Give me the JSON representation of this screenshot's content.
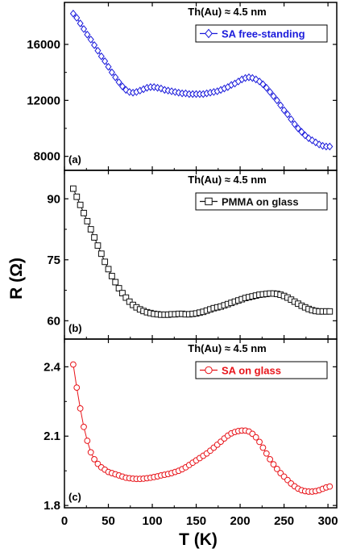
{
  "figure": {
    "ylabel": "R (Ω)",
    "xlabel": "T (K)",
    "x_ticks": [
      0,
      50,
      100,
      150,
      200,
      250,
      300
    ]
  },
  "chart_data": [
    {
      "type": "scatter",
      "panel_label": "(a)",
      "annotation": "Th(Au) ≈ 4.5 nm",
      "legend_placement": "top-right",
      "xlim": [
        0,
        310
      ],
      "ylim": [
        7000,
        19000
      ],
      "y_ticks": [
        8000,
        12000,
        16000
      ],
      "y_tick_labels": [
        "8000",
        "12000",
        "16000"
      ],
      "series": [
        {
          "name": "SA free-standing",
          "color": "#1a1adb",
          "marker": "diamond",
          "points": [
            [
              10,
              18200
            ],
            [
              14,
              17900
            ],
            [
              18,
              17500
            ],
            [
              22,
              17100
            ],
            [
              26,
              16700
            ],
            [
              30,
              16350
            ],
            [
              34,
              15950
            ],
            [
              38,
              15550
            ],
            [
              42,
              15150
            ],
            [
              46,
              14800
            ],
            [
              50,
              14400
            ],
            [
              54,
              14000
            ],
            [
              58,
              13650
            ],
            [
              62,
              13300
            ],
            [
              66,
              13000
            ],
            [
              70,
              12750
            ],
            [
              74,
              12600
            ],
            [
              78,
              12550
            ],
            [
              82,
              12600
            ],
            [
              86,
              12700
            ],
            [
              90,
              12800
            ],
            [
              94,
              12900
            ],
            [
              98,
              12950
            ],
            [
              102,
              12950
            ],
            [
              106,
              12900
            ],
            [
              110,
              12850
            ],
            [
              114,
              12750
            ],
            [
              118,
              12700
            ],
            [
              122,
              12650
            ],
            [
              126,
              12600
            ],
            [
              130,
              12550
            ],
            [
              134,
              12500
            ],
            [
              138,
              12500
            ],
            [
              142,
              12450
            ],
            [
              146,
              12450
            ],
            [
              150,
              12450
            ],
            [
              154,
              12450
            ],
            [
              158,
              12450
            ],
            [
              162,
              12500
            ],
            [
              166,
              12550
            ],
            [
              170,
              12600
            ],
            [
              174,
              12650
            ],
            [
              178,
              12750
            ],
            [
              182,
              12850
            ],
            [
              186,
              12950
            ],
            [
              190,
              13100
            ],
            [
              194,
              13200
            ],
            [
              198,
              13350
            ],
            [
              202,
              13500
            ],
            [
              206,
              13600
            ],
            [
              210,
              13650
            ],
            [
              214,
              13600
            ],
            [
              218,
              13500
            ],
            [
              222,
              13350
            ],
            [
              226,
              13150
            ],
            [
              230,
              12900
            ],
            [
              234,
              12600
            ],
            [
              238,
              12300
            ],
            [
              242,
              12000
            ],
            [
              246,
              11650
            ],
            [
              250,
              11300
            ],
            [
              254,
              11000
            ],
            [
              258,
              10650
            ],
            [
              262,
              10300
            ],
            [
              266,
              10000
            ],
            [
              270,
              9750
            ],
            [
              274,
              9500
            ],
            [
              278,
              9300
            ],
            [
              282,
              9150
            ],
            [
              286,
              9000
            ],
            [
              290,
              8850
            ],
            [
              294,
              8750
            ],
            [
              298,
              8700
            ],
            [
              302,
              8700
            ]
          ]
        }
      ]
    },
    {
      "type": "scatter",
      "panel_label": "(b)",
      "annotation": "Th(Au) ≈ 4.5 nm",
      "legend_placement": "top-right",
      "xlim": [
        0,
        310
      ],
      "ylim": [
        55.5,
        97
      ],
      "y_ticks": [
        60,
        75,
        90
      ],
      "y_tick_labels": [
        "60",
        "75",
        "90"
      ],
      "series": [
        {
          "name": "PMMA on glass",
          "color": "#111111",
          "marker": "square",
          "points": [
            [
              10,
              92.5
            ],
            [
              14,
              90.5
            ],
            [
              18,
              88.5
            ],
            [
              22,
              86.5
            ],
            [
              26,
              84.5
            ],
            [
              30,
              82.5
            ],
            [
              34,
              80.5
            ],
            [
              38,
              78.5
            ],
            [
              42,
              76.5
            ],
            [
              46,
              74.5
            ],
            [
              50,
              72.7
            ],
            [
              54,
              71
            ],
            [
              58,
              69.5
            ],
            [
              62,
              68
            ],
            [
              66,
              66.8
            ],
            [
              70,
              65.7
            ],
            [
              74,
              64.7
            ],
            [
              78,
              63.9
            ],
            [
              82,
              63.3
            ],
            [
              86,
              62.8
            ],
            [
              90,
              62.4
            ],
            [
              94,
              62.1
            ],
            [
              98,
              61.9
            ],
            [
              102,
              61.7
            ],
            [
              106,
              61.6
            ],
            [
              110,
              61.5
            ],
            [
              114,
              61.5
            ],
            [
              118,
              61.5
            ],
            [
              122,
              61.6
            ],
            [
              126,
              61.6
            ],
            [
              130,
              61.7
            ],
            [
              134,
              61.7
            ],
            [
              138,
              61.6
            ],
            [
              142,
              61.6
            ],
            [
              146,
              61.7
            ],
            [
              150,
              61.8
            ],
            [
              154,
              62
            ],
            [
              158,
              62.2
            ],
            [
              162,
              62.5
            ],
            [
              166,
              62.8
            ],
            [
              170,
              63.1
            ],
            [
              174,
              63.3
            ],
            [
              178,
              63.5
            ],
            [
              182,
              63.8
            ],
            [
              186,
              64.1
            ],
            [
              190,
              64.4
            ],
            [
              194,
              64.7
            ],
            [
              198,
              65
            ],
            [
              202,
              65.3
            ],
            [
              206,
              65.6
            ],
            [
              210,
              65.8
            ],
            [
              214,
              66
            ],
            [
              218,
              66.2
            ],
            [
              222,
              66.4
            ],
            [
              226,
              66.5
            ],
            [
              230,
              66.6
            ],
            [
              234,
              66.7
            ],
            [
              238,
              66.7
            ],
            [
              242,
              66.6
            ],
            [
              246,
              66.4
            ],
            [
              250,
              66.1
            ],
            [
              254,
              65.7
            ],
            [
              258,
              65.2
            ],
            [
              262,
              64.7
            ],
            [
              266,
              64.2
            ],
            [
              270,
              63.7
            ],
            [
              274,
              63.3
            ],
            [
              278,
              62.9
            ],
            [
              282,
              62.6
            ],
            [
              286,
              62.4
            ],
            [
              290,
              62.3
            ],
            [
              294,
              62.3
            ],
            [
              298,
              62.3
            ],
            [
              302,
              62.3
            ]
          ]
        }
      ]
    },
    {
      "type": "scatter",
      "panel_label": "(c)",
      "annotation": "Th(Au) ≈ 4.5 nm",
      "legend_placement": "top-right",
      "xlim": [
        0,
        310
      ],
      "ylim": [
        1.79,
        2.52
      ],
      "y_ticks": [
        1.8,
        2.1,
        2.4
      ],
      "y_tick_labels": [
        "1.8",
        "2.1",
        "2.4"
      ],
      "series": [
        {
          "name": "SA on glass",
          "color": "#e8151b",
          "marker": "circle",
          "points": [
            [
              10,
              2.41
            ],
            [
              14,
              2.31
            ],
            [
              18,
              2.22
            ],
            [
              22,
              2.14
            ],
            [
              26,
              2.08
            ],
            [
              30,
              2.03
            ],
            [
              34,
              2.0
            ],
            [
              38,
              1.98
            ],
            [
              42,
              1.965
            ],
            [
              46,
              1.955
            ],
            [
              50,
              1.945
            ],
            [
              54,
              1.94
            ],
            [
              58,
              1.935
            ],
            [
              62,
              1.93
            ],
            [
              66,
              1.925
            ],
            [
              70,
              1.92
            ],
            [
              74,
              1.918
            ],
            [
              78,
              1.916
            ],
            [
              82,
              1.915
            ],
            [
              86,
              1.915
            ],
            [
              90,
              1.916
            ],
            [
              94,
              1.918
            ],
            [
              98,
              1.92
            ],
            [
              102,
              1.923
            ],
            [
              106,
              1.926
            ],
            [
              110,
              1.93
            ],
            [
              114,
              1.933
            ],
            [
              118,
              1.936
            ],
            [
              122,
              1.94
            ],
            [
              126,
              1.945
            ],
            [
              130,
              1.95
            ],
            [
              134,
              1.957
            ],
            [
              138,
              1.965
            ],
            [
              142,
              1.975
            ],
            [
              146,
              1.985
            ],
            [
              150,
              1.995
            ],
            [
              154,
              2.005
            ],
            [
              158,
              2.015
            ],
            [
              162,
              2.025
            ],
            [
              166,
              2.037
            ],
            [
              170,
              2.05
            ],
            [
              174,
              2.063
            ],
            [
              178,
              2.076
            ],
            [
              182,
              2.09
            ],
            [
              186,
              2.102
            ],
            [
              190,
              2.112
            ],
            [
              194,
              2.118
            ],
            [
              198,
              2.122
            ],
            [
              202,
              2.124
            ],
            [
              206,
              2.124
            ],
            [
              210,
              2.12
            ],
            [
              214,
              2.11
            ],
            [
              218,
              2.095
            ],
            [
              222,
              2.075
            ],
            [
              226,
              2.05
            ],
            [
              230,
              2.025
            ],
            [
              234,
              2.0
            ],
            [
              238,
              1.978
            ],
            [
              242,
              1.958
            ],
            [
              246,
              1.94
            ],
            [
              250,
              1.925
            ],
            [
              254,
              1.91
            ],
            [
              258,
              1.895
            ],
            [
              262,
              1.883
            ],
            [
              266,
              1.873
            ],
            [
              270,
              1.866
            ],
            [
              274,
              1.862
            ],
            [
              278,
              1.86
            ],
            [
              282,
              1.86
            ],
            [
              286,
              1.862
            ],
            [
              290,
              1.866
            ],
            [
              294,
              1.872
            ],
            [
              298,
              1.878
            ],
            [
              302,
              1.882
            ]
          ]
        }
      ]
    }
  ]
}
